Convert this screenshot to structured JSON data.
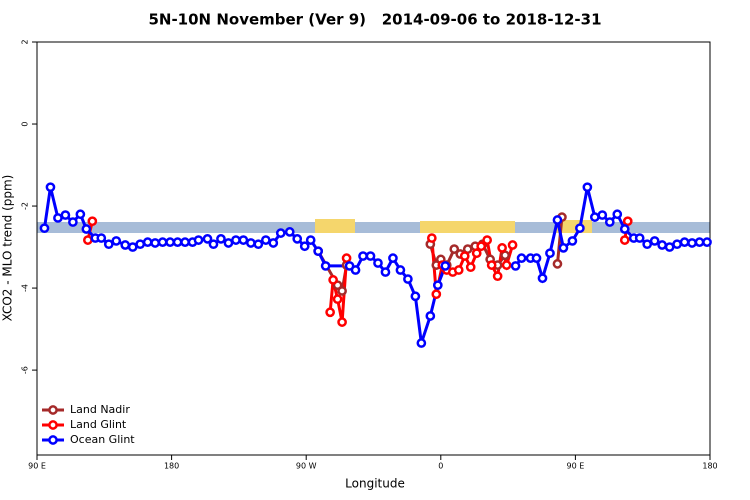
{
  "chart_data": {
    "type": "line",
    "title": "5N-10N November (Ver 9)   2014-09-06 to 2018-12-31",
    "x_label": "Longitude",
    "y_label": "XCO2 - MLO trend (ppm)",
    "xlim": [
      90,
      540
    ],
    "xticks": [
      {
        "value": 90,
        "label": "90 E"
      },
      180,
      {
        "value": 270,
        "label": "90 W"
      },
      {
        "value": 360,
        "label": "0"
      },
      {
        "value": 450,
        "label": "90 E"
      },
      {
        "value": 540,
        "label": "180"
      }
    ],
    "ylim": [
      -8.07,
      2
    ],
    "yticks": [
      -6,
      -4,
      -2,
      0,
      2
    ],
    "legend": "bottom-left",
    "series": [
      {
        "name": "Land Nadir",
        "color": "#a52a2a",
        "x": [
          278,
          291,
          294,
          297,
          null,
          353,
          357,
          360,
          364,
          369,
          373,
          378,
          383,
          388,
          393,
          398,
          403,
          null,
          438,
          441
        ],
        "values": [
          -3.1,
          -3.93,
          -4.07,
          -3.44,
          null,
          -2.93,
          -3.44,
          -3.3,
          -3.44,
          -3.05,
          -3.17,
          -3.05,
          -2.98,
          -2.93,
          -3.3,
          -3.44,
          -3.2,
          null,
          -3.41,
          -2.27
        ]
      },
      {
        "name": "Land Glint",
        "color": "#ff0000",
        "x": [
          124,
          127,
          null,
          286,
          288,
          291,
          294,
          297,
          null,
          354,
          357,
          361,
          364,
          368,
          372,
          376,
          380,
          384,
          387,
          391,
          394,
          398,
          401,
          404,
          408,
          null,
          483,
          485
        ],
        "values": [
          -2.83,
          -2.37,
          null,
          -4.59,
          -3.8,
          -4.27,
          -4.83,
          -3.27,
          null,
          -2.78,
          -4.15,
          -3.44,
          -3.56,
          -3.61,
          -3.56,
          -3.22,
          -3.49,
          -3.15,
          -2.98,
          -2.83,
          -3.44,
          -3.71,
          -3.02,
          -3.44,
          -2.95,
          null,
          -2.83,
          -2.37
        ]
      },
      {
        "name": "Ocean Glint",
        "color": "#0000ff",
        "x": [
          95,
          99,
          104,
          109,
          114,
          119,
          123,
          129,
          133,
          138,
          143,
          149,
          154,
          159,
          164,
          169,
          174,
          179,
          184,
          189,
          194,
          198,
          204,
          208,
          213,
          218,
          223,
          228,
          233,
          238,
          243,
          248,
          253,
          259,
          264,
          269,
          273,
          278,
          283,
          299,
          303,
          308,
          313,
          318,
          323,
          328,
          333,
          338,
          343,
          347,
          353,
          358,
          363,
          null,
          410,
          414,
          420,
          424,
          428,
          433,
          438,
          442,
          448,
          453,
          458,
          463,
          468,
          473,
          478,
          483,
          489,
          493,
          498,
          503,
          508,
          513,
          518,
          523,
          528,
          533,
          538
        ],
        "values": [
          -2.54,
          -1.54,
          -2.29,
          -2.22,
          -2.39,
          -2.2,
          -2.56,
          -2.78,
          -2.78,
          -2.93,
          -2.85,
          -2.95,
          -3.0,
          -2.93,
          -2.88,
          -2.9,
          -2.88,
          -2.88,
          -2.88,
          -2.88,
          -2.88,
          -2.83,
          -2.8,
          -2.93,
          -2.8,
          -2.9,
          -2.83,
          -2.83,
          -2.9,
          -2.93,
          -2.83,
          -2.9,
          -2.66,
          -2.63,
          -2.8,
          -2.98,
          -2.83,
          -3.1,
          -3.46,
          -3.46,
          -3.56,
          -3.22,
          -3.22,
          -3.39,
          -3.61,
          -3.27,
          -3.56,
          -3.78,
          -4.2,
          -5.34,
          -4.68,
          -3.93,
          -3.46,
          null,
          -3.46,
          -3.27,
          -3.27,
          -3.27,
          -3.76,
          -3.15,
          -2.34,
          -3.02,
          -2.85,
          -2.54,
          -1.54,
          -2.27,
          -2.22,
          -2.39,
          -2.2,
          -2.56,
          -2.78,
          -2.78,
          -2.93,
          -2.85,
          -2.95,
          -3.0,
          -2.93,
          -2.88,
          -2.9,
          -2.88,
          -2.88
        ]
      }
    ]
  }
}
